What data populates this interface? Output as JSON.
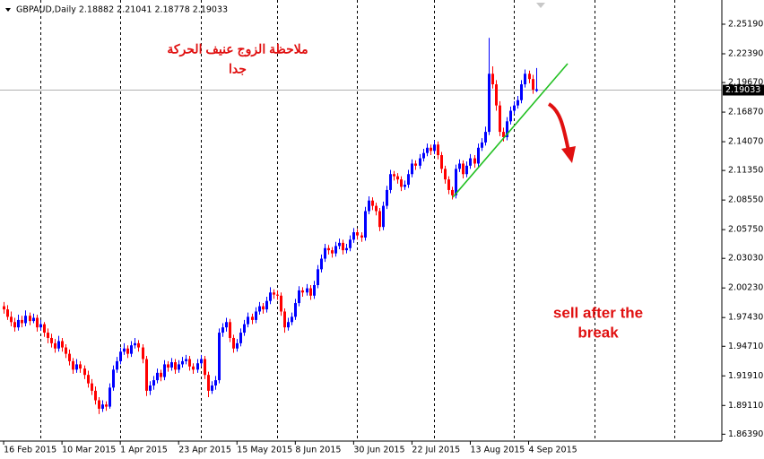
{
  "chart_data": {
    "type": "candlestick",
    "title": "GBPAUD,Daily  2.18882 2.21041 2.18778 2.19033",
    "annotations": [
      "ملاحظة الزوج عنيف الحركة",
      "جدا",
      "sell after the",
      "break"
    ],
    "up_color": "#0000ff",
    "down_color": "#ff0000",
    "last_price": 2.19033,
    "ylim": [
      1.8574,
      2.2748
    ],
    "yticks": [
      {
        "value": 2.2519,
        "label": "2.25190"
      },
      {
        "value": 2.2239,
        "label": "2.22390"
      },
      {
        "value": 2.1967,
        "label": "2.19670"
      },
      {
        "value": 2.1687,
        "label": "2.16870"
      },
      {
        "value": 2.1407,
        "label": "2.14070"
      },
      {
        "value": 2.1135,
        "label": "2.11350"
      },
      {
        "value": 2.0855,
        "label": "2.08550"
      },
      {
        "value": 2.0575,
        "label": "2.05750"
      },
      {
        "value": 2.0303,
        "label": "2.03030"
      },
      {
        "value": 2.0023,
        "label": "2.00230"
      },
      {
        "value": 1.9743,
        "label": "1.97430"
      },
      {
        "value": 1.9471,
        "label": "1.94710"
      },
      {
        "value": 1.9191,
        "label": "1.91910"
      },
      {
        "value": 1.8911,
        "label": "1.89110"
      },
      {
        "value": 1.8639,
        "label": "1.86390"
      }
    ],
    "xlim": [
      -1,
      197
    ],
    "period_separators": [
      10,
      32,
      54,
      75,
      97,
      118,
      140,
      162,
      184
    ],
    "categories": [
      "16 Feb 2015",
      null,
      null,
      null,
      null,
      null,
      null,
      null,
      null,
      null,
      null,
      null,
      null,
      null,
      null,
      null,
      "10 Mar 2015",
      null,
      null,
      null,
      null,
      null,
      null,
      null,
      null,
      null,
      null,
      null,
      null,
      null,
      null,
      null,
      "1 Apr 2015",
      null,
      null,
      null,
      null,
      null,
      null,
      null,
      null,
      null,
      null,
      null,
      null,
      null,
      null,
      null,
      "23 Apr 2015",
      null,
      null,
      null,
      null,
      null,
      null,
      null,
      null,
      null,
      null,
      null,
      null,
      null,
      null,
      null,
      "15 May 2015",
      null,
      null,
      null,
      null,
      null,
      null,
      null,
      null,
      null,
      null,
      null,
      null,
      null,
      null,
      null,
      "8 Jun 2015",
      null,
      null,
      null,
      null,
      null,
      null,
      null,
      null,
      null,
      null,
      null,
      null,
      null,
      null,
      null,
      "30 Jun 2015",
      null,
      null,
      null,
      null,
      null,
      null,
      null,
      null,
      null,
      null,
      null,
      null,
      null,
      null,
      null,
      "22 Jul 2015",
      null,
      null,
      null,
      null,
      null,
      null,
      null,
      null,
      null,
      null,
      null,
      null,
      null,
      null,
      null,
      "13 Aug 2015",
      null,
      null,
      null,
      null,
      null,
      null,
      null,
      null,
      null,
      null,
      null,
      null,
      null,
      null,
      null,
      "4 Sep 2015",
      null,
      null
    ],
    "ohlc": [
      [
        1.985,
        1.989,
        1.978,
        1.982
      ],
      [
        1.982,
        1.986,
        1.972,
        1.975
      ],
      [
        1.975,
        1.98,
        1.966,
        1.97
      ],
      [
        1.97,
        1.974,
        1.961,
        1.965
      ],
      [
        1.965,
        1.977,
        1.962,
        1.972
      ],
      [
        1.972,
        1.976,
        1.965,
        1.969
      ],
      [
        1.969,
        1.981,
        1.966,
        1.976
      ],
      [
        1.976,
        1.979,
        1.967,
        1.971
      ],
      [
        1.971,
        1.978,
        1.969,
        1.974
      ],
      [
        1.974,
        1.977,
        1.961,
        1.965
      ],
      [
        1.965,
        1.972,
        1.962,
        1.968
      ],
      [
        1.968,
        1.97,
        1.956,
        1.96
      ],
      [
        1.96,
        1.964,
        1.95,
        1.955
      ],
      [
        1.955,
        1.959,
        1.946,
        1.95
      ],
      [
        1.95,
        1.954,
        1.941,
        1.945
      ],
      [
        1.945,
        1.957,
        1.942,
        1.952
      ],
      [
        1.952,
        1.955,
        1.942,
        1.946
      ],
      [
        1.946,
        1.949,
        1.936,
        1.94
      ],
      [
        1.94,
        1.944,
        1.929,
        1.933
      ],
      [
        1.933,
        1.936,
        1.921,
        1.925
      ],
      [
        1.925,
        1.935,
        1.922,
        1.93
      ],
      [
        1.93,
        1.933,
        1.922,
        1.926
      ],
      [
        1.926,
        1.929,
        1.916,
        1.92
      ],
      [
        1.92,
        1.924,
        1.908,
        1.912
      ],
      [
        1.912,
        1.916,
        1.901,
        1.905
      ],
      [
        1.905,
        1.909,
        1.892,
        1.896
      ],
      [
        1.896,
        1.899,
        1.883,
        1.888
      ],
      [
        1.888,
        1.896,
        1.885,
        1.892
      ],
      [
        1.892,
        1.895,
        1.886,
        1.89
      ],
      [
        1.89,
        1.912,
        1.888,
        1.908
      ],
      [
        1.908,
        1.929,
        1.905,
        1.925
      ],
      [
        1.925,
        1.937,
        1.922,
        1.933
      ],
      [
        1.933,
        1.946,
        1.93,
        1.942
      ],
      [
        1.942,
        1.95,
        1.939,
        1.945
      ],
      [
        1.945,
        1.948,
        1.936,
        1.94
      ],
      [
        1.94,
        1.952,
        1.937,
        1.948
      ],
      [
        1.948,
        1.955,
        1.945,
        1.95
      ],
      [
        1.95,
        1.953,
        1.942,
        1.946
      ],
      [
        1.946,
        1.949,
        1.931,
        1.935
      ],
      [
        1.935,
        1.938,
        1.9,
        1.905
      ],
      [
        1.905,
        1.914,
        1.901,
        1.91
      ],
      [
        1.91,
        1.919,
        1.906,
        1.915
      ],
      [
        1.915,
        1.926,
        1.912,
        1.922
      ],
      [
        1.922,
        1.925,
        1.914,
        1.918
      ],
      [
        1.918,
        1.934,
        1.915,
        1.93
      ],
      [
        1.93,
        1.933,
        1.923,
        1.927
      ],
      [
        1.927,
        1.936,
        1.924,
        1.932
      ],
      [
        1.932,
        1.935,
        1.921,
        1.925
      ],
      [
        1.925,
        1.934,
        1.922,
        1.93
      ],
      [
        1.93,
        1.937,
        1.927,
        1.933
      ],
      [
        1.933,
        1.939,
        1.93,
        1.935
      ],
      [
        1.935,
        1.938,
        1.924,
        1.928
      ],
      [
        1.928,
        1.931,
        1.921,
        1.925
      ],
      [
        1.925,
        1.935,
        1.922,
        1.931
      ],
      [
        1.931,
        1.939,
        1.928,
        1.935
      ],
      [
        1.935,
        1.938,
        1.916,
        1.92
      ],
      [
        1.92,
        1.923,
        1.899,
        1.905
      ],
      [
        1.905,
        1.914,
        1.902,
        1.91
      ],
      [
        1.91,
        1.919,
        1.906,
        1.915
      ],
      [
        1.915,
        1.964,
        1.912,
        1.96
      ],
      [
        1.96,
        1.969,
        1.956,
        1.965
      ],
      [
        1.965,
        1.974,
        1.961,
        1.97
      ],
      [
        1.97,
        1.973,
        1.951,
        1.955
      ],
      [
        1.955,
        1.958,
        1.941,
        1.945
      ],
      [
        1.945,
        1.954,
        1.942,
        1.95
      ],
      [
        1.95,
        1.964,
        1.947,
        1.96
      ],
      [
        1.96,
        1.972,
        1.957,
        1.968
      ],
      [
        1.968,
        1.979,
        1.965,
        1.975
      ],
      [
        1.975,
        1.978,
        1.968,
        1.972
      ],
      [
        1.972,
        1.984,
        1.969,
        1.98
      ],
      [
        1.98,
        1.989,
        1.977,
        1.985
      ],
      [
        1.985,
        1.988,
        1.978,
        1.982
      ],
      [
        1.982,
        1.994,
        1.979,
        1.99
      ],
      [
        1.99,
        2.003,
        1.987,
        1.998
      ],
      [
        1.998,
        2.001,
        1.992,
        1.996
      ],
      [
        1.996,
        2.0,
        1.991,
        1.995
      ],
      [
        1.995,
        1.998,
        1.976,
        1.98
      ],
      [
        1.98,
        1.983,
        1.96,
        1.965
      ],
      [
        1.965,
        1.974,
        1.962,
        1.97
      ],
      [
        1.97,
        1.979,
        1.967,
        1.975
      ],
      [
        1.975,
        1.992,
        1.972,
        1.988
      ],
      [
        1.988,
        2.004,
        1.985,
        2.0
      ],
      [
        2.0,
        2.003,
        1.994,
        1.998
      ],
      [
        1.998,
        2.006,
        1.995,
        2.002
      ],
      [
        2.002,
        2.005,
        1.991,
        1.995
      ],
      [
        1.995,
        2.009,
        1.992,
        2.005
      ],
      [
        2.005,
        2.024,
        2.002,
        2.02
      ],
      [
        2.02,
        2.034,
        2.017,
        2.03
      ],
      [
        2.03,
        2.044,
        2.027,
        2.04
      ],
      [
        2.04,
        2.043,
        2.034,
        2.038
      ],
      [
        2.038,
        2.041,
        2.031,
        2.035
      ],
      [
        2.035,
        2.046,
        2.032,
        2.042
      ],
      [
        2.042,
        2.049,
        2.039,
        2.045
      ],
      [
        2.045,
        2.048,
        2.034,
        2.038
      ],
      [
        2.038,
        2.044,
        2.035,
        2.04
      ],
      [
        2.04,
        2.052,
        2.037,
        2.048
      ],
      [
        2.048,
        2.059,
        2.045,
        2.055
      ],
      [
        2.055,
        2.058,
        2.048,
        2.052
      ],
      [
        2.052,
        2.055,
        2.046,
        2.05
      ],
      [
        2.05,
        2.079,
        2.047,
        2.075
      ],
      [
        2.075,
        2.089,
        2.072,
        2.085
      ],
      [
        2.085,
        2.088,
        2.076,
        2.08
      ],
      [
        2.08,
        2.083,
        2.071,
        2.075
      ],
      [
        2.075,
        2.078,
        2.056,
        2.06
      ],
      [
        2.06,
        2.084,
        2.057,
        2.08
      ],
      [
        2.08,
        2.099,
        2.077,
        2.095
      ],
      [
        2.095,
        2.114,
        2.092,
        2.11
      ],
      [
        2.11,
        2.113,
        2.104,
        2.108
      ],
      [
        2.108,
        2.111,
        2.101,
        2.105
      ],
      [
        2.105,
        2.108,
        2.094,
        2.098
      ],
      [
        2.098,
        2.104,
        2.095,
        2.1
      ],
      [
        2.1,
        2.114,
        2.097,
        2.11
      ],
      [
        2.11,
        2.124,
        2.107,
        2.12
      ],
      [
        2.12,
        2.123,
        2.114,
        2.118
      ],
      [
        2.118,
        2.129,
        2.115,
        2.125
      ],
      [
        2.125,
        2.134,
        2.122,
        2.13
      ],
      [
        2.13,
        2.139,
        2.127,
        2.135
      ],
      [
        2.135,
        2.138,
        2.128,
        2.132
      ],
      [
        2.132,
        2.142,
        2.129,
        2.138
      ],
      [
        2.138,
        2.141,
        2.124,
        2.128
      ],
      [
        2.128,
        2.131,
        2.111,
        2.115
      ],
      [
        2.115,
        2.118,
        2.101,
        2.105
      ],
      [
        2.105,
        2.108,
        2.091,
        2.095
      ],
      [
        2.095,
        2.098,
        2.086,
        2.09
      ],
      [
        2.09,
        2.119,
        2.087,
        2.115
      ],
      [
        2.115,
        2.124,
        2.112,
        2.12
      ],
      [
        2.12,
        2.123,
        2.106,
        2.11
      ],
      [
        2.11,
        2.122,
        2.107,
        2.118
      ],
      [
        2.118,
        2.129,
        2.115,
        2.125
      ],
      [
        2.125,
        2.128,
        2.116,
        2.12
      ],
      [
        2.12,
        2.139,
        2.117,
        2.135
      ],
      [
        2.135,
        2.144,
        2.132,
        2.14
      ],
      [
        2.14,
        2.155,
        2.137,
        2.15
      ],
      [
        2.15,
        2.239,
        2.147,
        2.205
      ],
      [
        2.205,
        2.212,
        2.191,
        2.195
      ],
      [
        2.195,
        2.199,
        2.17,
        2.175
      ],
      [
        2.175,
        2.179,
        2.146,
        2.15
      ],
      [
        2.15,
        2.154,
        2.141,
        2.145
      ],
      [
        2.145,
        2.164,
        2.142,
        2.16
      ],
      [
        2.16,
        2.174,
        2.157,
        2.17
      ],
      [
        2.17,
        2.179,
        2.167,
        2.175
      ],
      [
        2.175,
        2.184,
        2.172,
        2.18
      ],
      [
        2.18,
        2.199,
        2.177,
        2.195
      ],
      [
        2.195,
        2.209,
        2.192,
        2.205
      ],
      [
        2.205,
        2.208,
        2.196,
        2.2
      ],
      [
        2.2,
        2.204,
        2.186,
        2.19
      ],
      [
        2.18882,
        2.21041,
        2.18778,
        2.19033
      ]
    ]
  }
}
